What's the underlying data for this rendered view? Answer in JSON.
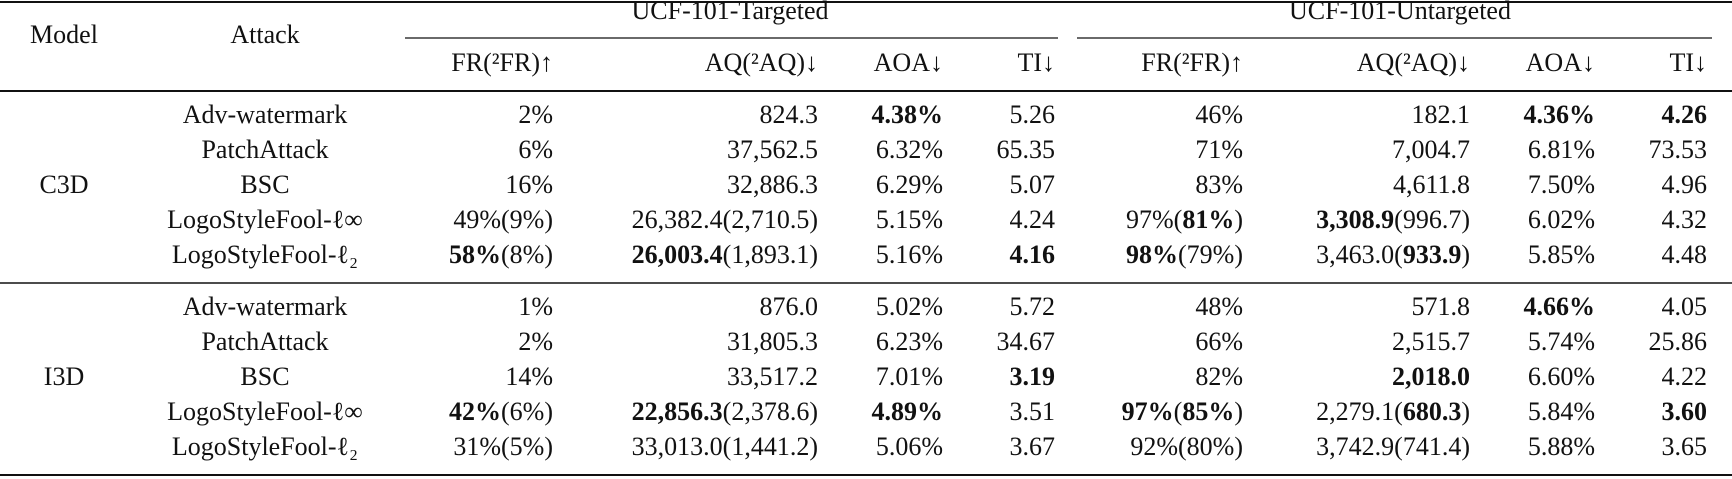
{
  "header": {
    "model": "Model",
    "attack": "Attack",
    "groups": [
      "UCF-101-Targeted",
      "UCF-101-Untargeted"
    ],
    "columns": [
      "FR(²FR)↑",
      "AQ(²AQ)↓",
      "AOA↓",
      "TI↓",
      "FR(²FR)↑",
      "AQ(²AQ)↓",
      "AOA↓",
      "TI↓"
    ]
  },
  "table": {
    "blocks": [
      {
        "model": "C3D",
        "rows": [
          {
            "attack": "Adv-watermark",
            "cells": [
              [
                "2%"
              ],
              [
                "824.3"
              ],
              [
                {
                  "bold": "4.38%"
                }
              ],
              [
                "5.26"
              ],
              [
                "46%"
              ],
              [
                "182.1"
              ],
              [
                {
                  "bold": "4.36%"
                }
              ],
              [
                {
                  "bold": "4.26"
                }
              ]
            ]
          },
          {
            "attack": "PatchAttack",
            "cells": [
              [
                "6%"
              ],
              [
                "37,562.5"
              ],
              [
                "6.32%"
              ],
              [
                "65.35"
              ],
              [
                "71%"
              ],
              [
                "7,004.7"
              ],
              [
                "6.81%"
              ],
              [
                "73.53"
              ]
            ]
          },
          {
            "attack": "BSC",
            "cells": [
              [
                "16%"
              ],
              [
                "32,886.3"
              ],
              [
                "6.29%"
              ],
              [
                "5.07"
              ],
              [
                "83%"
              ],
              [
                "4,611.8"
              ],
              [
                "7.50%"
              ],
              [
                "4.96"
              ]
            ]
          },
          {
            "attack": "LogoStyleFool-ℓ∞",
            "cells": [
              [
                "49%(9%)"
              ],
              [
                "26,382.4(2,710.5)"
              ],
              [
                "5.15%"
              ],
              [
                "4.24"
              ],
              [
                "97%(",
                {
                  "bold": "81%"
                },
                ")"
              ],
              [
                {
                  "bold": "3,308.9"
                },
                "(996.7)"
              ],
              [
                "6.02%"
              ],
              [
                "4.32"
              ]
            ]
          },
          {
            "attack": "LogoStyleFool-ℓ₂",
            "cells": [
              [
                {
                  "bold": "58%"
                },
                "(8%)"
              ],
              [
                {
                  "bold": "26,003.4"
                },
                "(1,893.1)"
              ],
              [
                "5.16%"
              ],
              [
                {
                  "bold": "4.16"
                }
              ],
              [
                {
                  "bold": "98%"
                },
                "(79%)"
              ],
              [
                "3,463.0(",
                {
                  "bold": "933.9"
                },
                ")"
              ],
              [
                "5.85%"
              ],
              [
                "4.48"
              ]
            ]
          }
        ]
      },
      {
        "model": "I3D",
        "rows": [
          {
            "attack": "Adv-watermark",
            "cells": [
              [
                "1%"
              ],
              [
                "876.0"
              ],
              [
                "5.02%"
              ],
              [
                "5.72"
              ],
              [
                "48%"
              ],
              [
                "571.8"
              ],
              [
                {
                  "bold": "4.66%"
                }
              ],
              [
                "4.05"
              ]
            ]
          },
          {
            "attack": "PatchAttack",
            "cells": [
              [
                "2%"
              ],
              [
                "31,805.3"
              ],
              [
                "6.23%"
              ],
              [
                "34.67"
              ],
              [
                "66%"
              ],
              [
                "2,515.7"
              ],
              [
                "5.74%"
              ],
              [
                "25.86"
              ]
            ]
          },
          {
            "attack": "BSC",
            "cells": [
              [
                "14%"
              ],
              [
                "33,517.2"
              ],
              [
                "7.01%"
              ],
              [
                {
                  "bold": "3.19"
                }
              ],
              [
                "82%"
              ],
              [
                {
                  "bold": "2,018.0"
                }
              ],
              [
                "6.60%"
              ],
              [
                "4.22"
              ]
            ]
          },
          {
            "attack": "LogoStyleFool-ℓ∞",
            "cells": [
              [
                {
                  "bold": "42%"
                },
                "(6%)"
              ],
              [
                {
                  "bold": "22,856.3"
                },
                "(2,378.6)"
              ],
              [
                {
                  "bold": "4.89%"
                }
              ],
              [
                "3.51"
              ],
              [
                {
                  "bold": "97%"
                },
                "(",
                {
                  "bold": "85%"
                },
                ")"
              ],
              [
                "2,279.1(",
                {
                  "bold": "680.3"
                },
                ")"
              ],
              [
                "5.84%"
              ],
              [
                {
                  "bold": "3.60"
                }
              ]
            ]
          },
          {
            "attack": "LogoStyleFool-ℓ₂",
            "cells": [
              [
                "31%(5%)"
              ],
              [
                "33,013.0(1,441.2)"
              ],
              [
                "5.06%"
              ],
              [
                "3.67"
              ],
              [
                "92%(80%)"
              ],
              [
                "3,742.9(741.4)"
              ],
              [
                "5.88%"
              ],
              [
                "3.65"
              ]
            ]
          }
        ]
      }
    ]
  }
}
